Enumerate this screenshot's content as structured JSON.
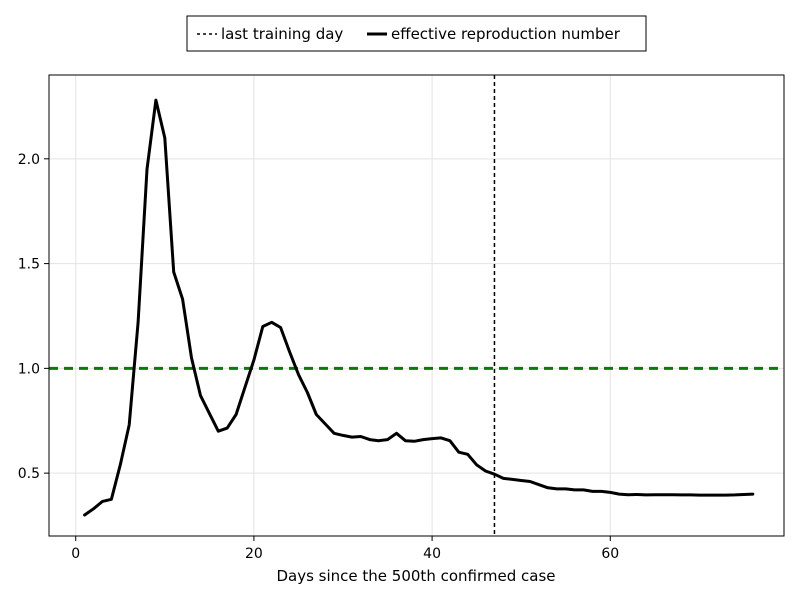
{
  "chart_data": {
    "type": "line",
    "title": "",
    "xlabel": "Days since the 500th confirmed case",
    "ylabel": "",
    "xlim": [
      -3,
      79.5
    ],
    "ylim": [
      0.2,
      2.4
    ],
    "xticks": [
      0,
      20,
      40,
      60
    ],
    "xtick_labels": [
      "0",
      "20",
      "40",
      "60"
    ],
    "yticks": [
      0.5,
      1.0,
      1.5,
      2.0
    ],
    "ytick_labels": [
      "0.5",
      "1.0",
      "1.5",
      "2.0"
    ],
    "grid": true,
    "legend_position": "top-center, above the plot",
    "legend": [
      {
        "label": "last training day",
        "style": "dashed",
        "color": "#000000"
      },
      {
        "label": "effective reproduction number",
        "style": "solid",
        "color": "#000000"
      }
    ],
    "series": [
      {
        "name": "effective reproduction number",
        "color": "#000000",
        "x": [
          1,
          2,
          3,
          4,
          5,
          6,
          7,
          8,
          9,
          10,
          11,
          12,
          13,
          14,
          15,
          16,
          17,
          18,
          19,
          20,
          21,
          22,
          23,
          24,
          25,
          26,
          27,
          28,
          29,
          30,
          31,
          32,
          33,
          34,
          35,
          36,
          37,
          38,
          39,
          40,
          41,
          42,
          43,
          44,
          45,
          46,
          47,
          48,
          49,
          50,
          51,
          52,
          53,
          54,
          55,
          56,
          57,
          58,
          59,
          60,
          61,
          62,
          63,
          64,
          65,
          66,
          67,
          68,
          69,
          70,
          71,
          72,
          73,
          74,
          75,
          76
        ],
        "y": [
          0.3,
          0.33,
          0.365,
          0.375,
          0.54,
          0.73,
          1.22,
          1.95,
          2.28,
          2.1,
          1.46,
          1.33,
          1.05,
          0.87,
          0.785,
          0.7,
          0.715,
          0.78,
          0.91,
          1.04,
          1.2,
          1.22,
          1.195,
          1.08,
          0.97,
          0.885,
          0.78,
          0.735,
          0.69,
          0.68,
          0.672,
          0.675,
          0.66,
          0.655,
          0.66,
          0.69,
          0.655,
          0.652,
          0.66,
          0.665,
          0.668,
          0.655,
          0.6,
          0.59,
          0.54,
          0.51,
          0.495,
          0.475,
          0.47,
          0.465,
          0.46,
          0.445,
          0.43,
          0.425,
          0.425,
          0.42,
          0.42,
          0.413,
          0.413,
          0.408,
          0.4,
          0.397,
          0.398,
          0.396,
          0.397,
          0.397,
          0.397,
          0.396,
          0.396,
          0.395,
          0.395,
          0.395,
          0.395,
          0.396,
          0.398,
          0.4
        ]
      }
    ],
    "reference_lines": [
      {
        "orientation": "horizontal",
        "value": 1.0,
        "style": "dashed",
        "color": "#0a7a0a"
      },
      {
        "orientation": "vertical",
        "value": 47,
        "style": "dashed",
        "color": "#000000",
        "label": "last training day"
      }
    ]
  }
}
